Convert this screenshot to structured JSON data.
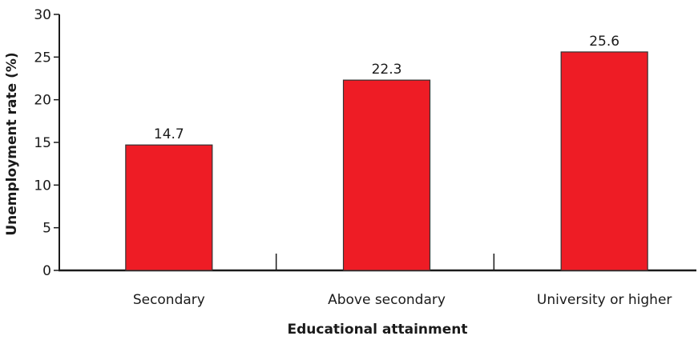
{
  "chart_data": {
    "type": "bar",
    "categories": [
      "Secondary",
      "Above secondary",
      "University or higher"
    ],
    "values": [
      14.7,
      22.3,
      25.6
    ],
    "xlabel": "Educational attainment",
    "ylabel": "Unemployment rate (%)",
    "ylim": [
      0,
      30
    ],
    "yticks": [
      0,
      5,
      10,
      15,
      20,
      25,
      30
    ],
    "grid": false,
    "data_labels": true,
    "bar_color": "#ee1c25",
    "bar_edge_color": "#333333"
  }
}
